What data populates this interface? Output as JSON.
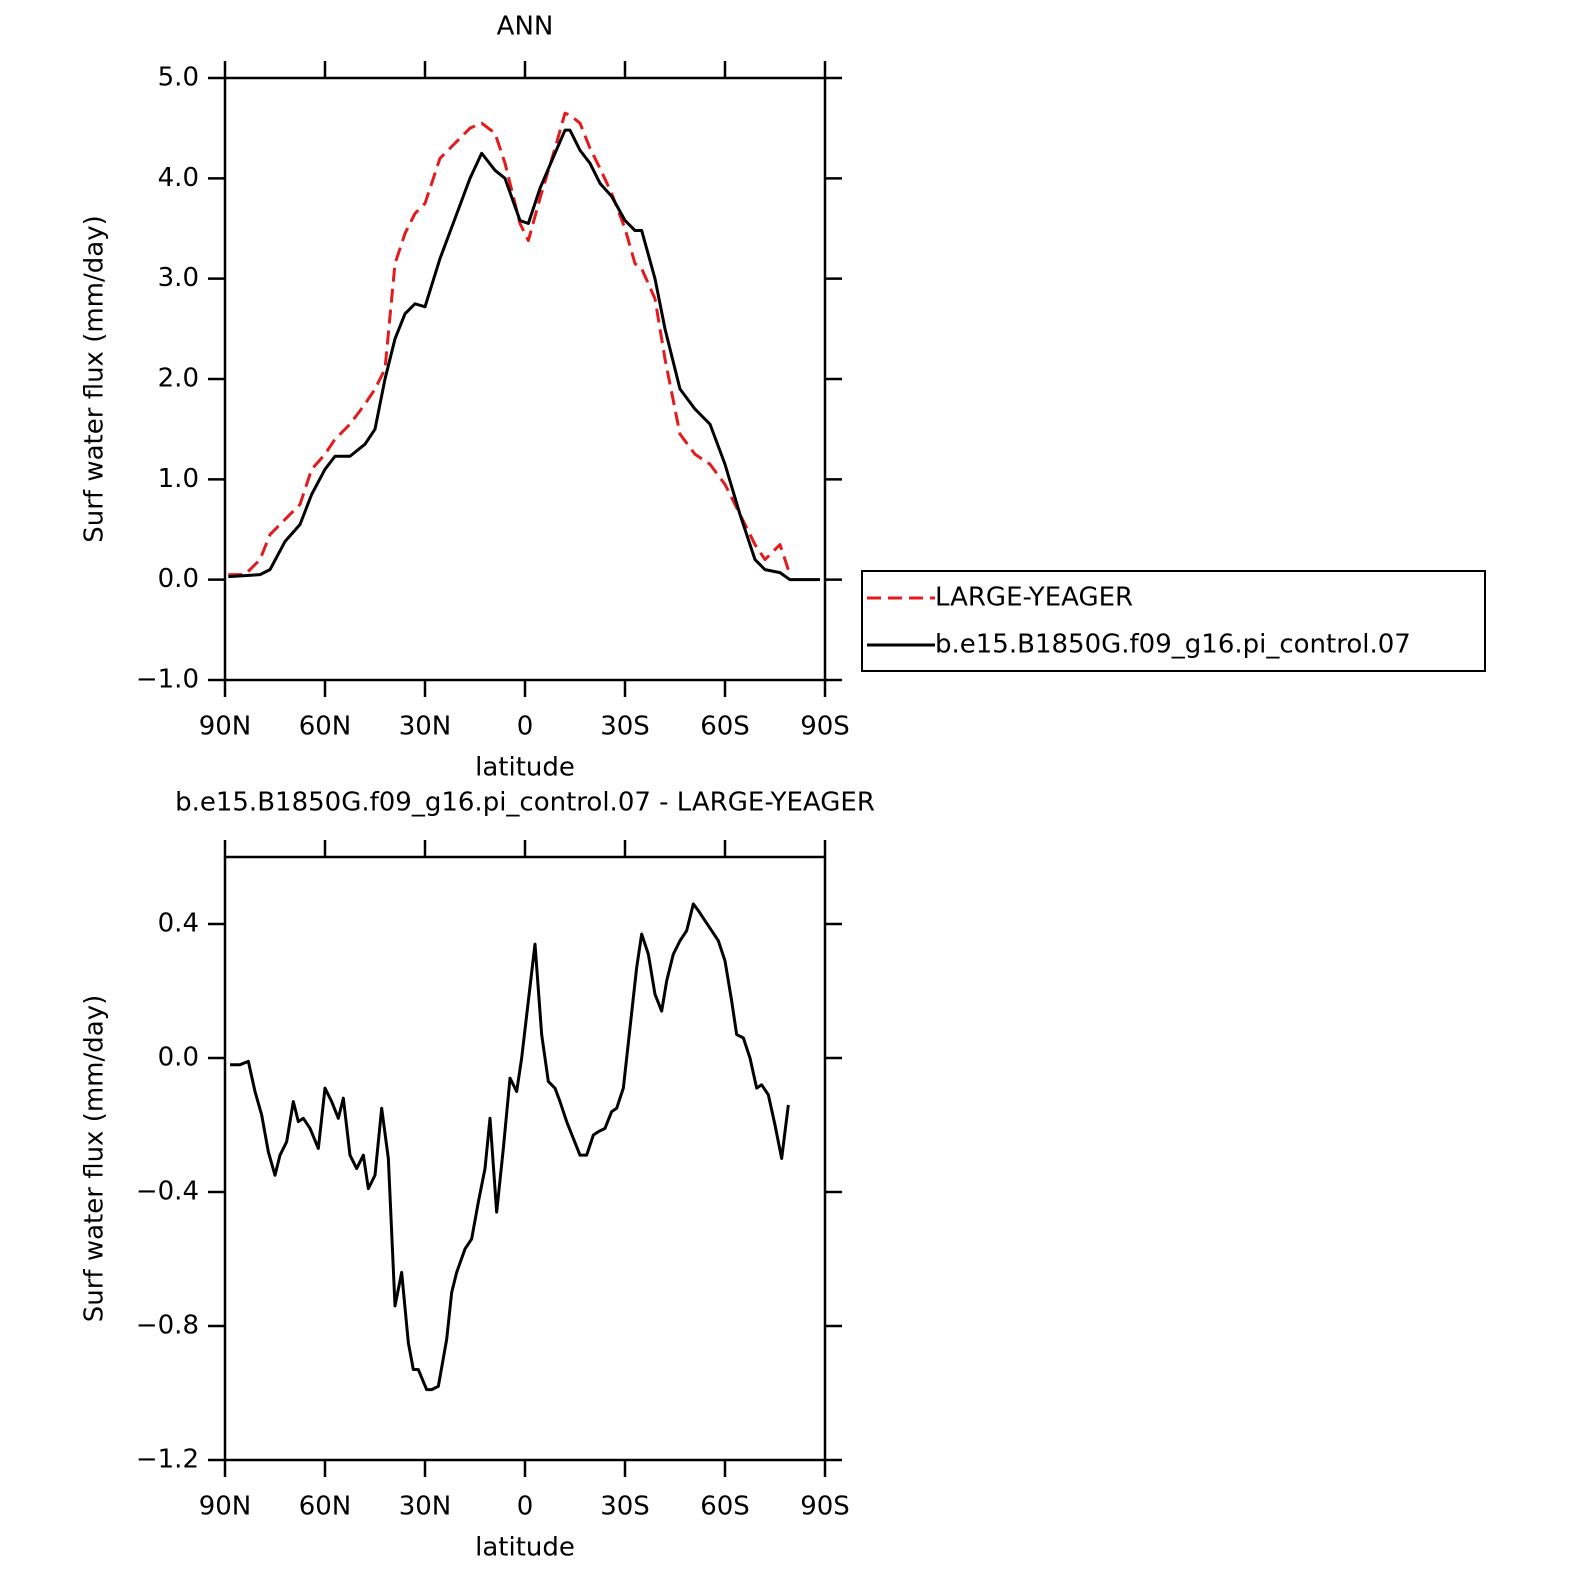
{
  "chart_data": [
    {
      "type": "line",
      "title": "ANN",
      "xlabel": "latitude",
      "ylabel": "Surf water flux (mm/day)",
      "x": [
        89,
        84,
        79.5,
        76.5,
        72,
        67.5,
        64,
        60,
        57,
        52.5,
        48,
        45,
        42,
        39,
        36,
        33,
        30,
        25.5,
        21,
        16.5,
        13,
        9,
        6,
        1.5,
        -1,
        -4.5,
        -9,
        -12,
        -13.5,
        -16.5,
        -19.5,
        -22.5,
        -26,
        -30,
        -33,
        -35,
        -39,
        -42,
        -46.5,
        -51,
        -55.5,
        -60,
        -64.5,
        -69,
        -72,
        -76.5,
        -79.5,
        -88.5
      ],
      "series": [
        {
          "name": "LARGE-YEAGER",
          "color": "#e41a1c",
          "linestyle": "dashed",
          "values": [
            0.05,
            0.05,
            0.2,
            0.45,
            0.6,
            0.75,
            1.1,
            1.25,
            1.4,
            1.55,
            1.75,
            1.9,
            2.1,
            3.15,
            3.45,
            3.65,
            3.75,
            4.2,
            4.35,
            4.5,
            4.55,
            4.45,
            4.15,
            3.55,
            3.38,
            3.8,
            4.3,
            4.65,
            4.63,
            4.55,
            4.3,
            4.1,
            3.85,
            3.5,
            3.15,
            3.1,
            2.8,
            2.2,
            1.45,
            1.25,
            1.15,
            0.95,
            0.65,
            0.35,
            0.2,
            0.35,
            0.05,
            null
          ]
        },
        {
          "name": "b.e15.B1850G.f09_g16.pi_control.07",
          "color": "#000000",
          "linestyle": "solid",
          "values": [
            0.03,
            0.04,
            0.05,
            0.1,
            0.38,
            0.55,
            0.85,
            1.1,
            1.23,
            1.23,
            1.35,
            1.5,
            2.0,
            2.4,
            2.65,
            2.75,
            2.72,
            3.2,
            3.6,
            4.0,
            4.25,
            4.08,
            4.0,
            3.58,
            3.55,
            3.9,
            4.25,
            4.48,
            4.48,
            4.28,
            4.15,
            3.95,
            3.82,
            3.58,
            3.48,
            3.48,
            3.0,
            2.5,
            1.9,
            1.7,
            1.55,
            1.15,
            0.65,
            0.2,
            0.1,
            0.07,
            0.0,
            0.0
          ]
        }
      ],
      "xlim": [
        90,
        -90
      ],
      "xticks": [
        {
          "value": 90,
          "label": "90N"
        },
        {
          "value": 60,
          "label": "60N"
        },
        {
          "value": 30,
          "label": "30N"
        },
        0,
        {
          "value": -30,
          "label": "30S"
        },
        {
          "value": -60,
          "label": "60S"
        },
        {
          "value": -90,
          "label": "90S"
        }
      ],
      "ylim": [
        -1,
        5
      ],
      "yticks": [
        {
          "value": -1,
          "label": "−1.0"
        },
        {
          "value": 0,
          "label": "0.0"
        },
        {
          "value": 1,
          "label": "1.0"
        },
        {
          "value": 2,
          "label": "2.0"
        },
        {
          "value": 3,
          "label": "3.0"
        },
        {
          "value": 4,
          "label": "4.0"
        },
        {
          "value": 5,
          "label": "5.0"
        }
      ],
      "legend": "right"
    },
    {
      "type": "line",
      "title": "b.e15.B1850G.f09_g16.pi_control.07 - LARGE-YEAGER",
      "xlabel": "latitude",
      "ylabel": "Surf water flux (mm/day)",
      "x": [
        88.5,
        85.5,
        83,
        81,
        79,
        77,
        75,
        73.5,
        71.5,
        69.5,
        68,
        66.5,
        64.5,
        62,
        60,
        58,
        56,
        54.5,
        52.5,
        50.5,
        48.5,
        47,
        45,
        43,
        41,
        39,
        37,
        35,
        33.5,
        32,
        29.5,
        28,
        26,
        23.5,
        22,
        20.5,
        18,
        16,
        14,
        12,
        10.5,
        8.5,
        6.5,
        4.5,
        2.5,
        1,
        -1,
        -3,
        -5,
        -7,
        -9,
        -10.5,
        -12.5,
        -14.5,
        -16.5,
        -18.5,
        -20.5,
        -22,
        -24,
        -26,
        -27.5,
        -29.5,
        -31.5,
        -33.5,
        -35,
        -37,
        -39,
        -41,
        -42.5,
        -44.5,
        -46.5,
        -48.5,
        -50.5,
        -52,
        -54,
        -56,
        -58,
        -60,
        -62,
        -63.5,
        -65.5,
        -67.5,
        -69.5,
        -71,
        -73,
        -75,
        -77,
        -79
      ],
      "values": [
        -0.02,
        -0.02,
        -0.01,
        -0.1,
        -0.17,
        -0.28,
        -0.35,
        -0.29,
        -0.25,
        -0.13,
        -0.19,
        -0.18,
        -0.21,
        -0.27,
        -0.09,
        -0.13,
        -0.18,
        -0.12,
        -0.29,
        -0.33,
        -0.29,
        -0.39,
        -0.35,
        -0.15,
        -0.3,
        -0.74,
        -0.64,
        -0.85,
        -0.93,
        -0.93,
        -0.99,
        -0.99,
        -0.98,
        -0.84,
        -0.7,
        -0.64,
        -0.57,
        -0.54,
        -0.43,
        -0.33,
        -0.18,
        -0.46,
        -0.27,
        -0.06,
        -0.1,
        0.0,
        0.17,
        0.34,
        0.07,
        -0.07,
        -0.09,
        -0.13,
        -0.19,
        -0.24,
        -0.29,
        -0.29,
        -0.23,
        -0.22,
        -0.21,
        -0.16,
        -0.15,
        -0.09,
        0.09,
        0.27,
        0.37,
        0.31,
        0.19,
        0.14,
        0.23,
        0.31,
        0.35,
        0.38,
        0.46,
        0.44,
        0.41,
        0.38,
        0.35,
        0.29,
        0.17,
        0.07,
        0.06,
        0.0,
        -0.09,
        -0.08,
        -0.11,
        -0.2,
        -0.3,
        -0.14
      ],
      "color": "#000000",
      "xlim": [
        90,
        -90
      ],
      "xticks": [
        {
          "value": 90,
          "label": "90N"
        },
        {
          "value": 60,
          "label": "60N"
        },
        {
          "value": 30,
          "label": "30N"
        },
        0,
        {
          "value": -30,
          "label": "30S"
        },
        {
          "value": -60,
          "label": "60S"
        },
        {
          "value": -90,
          "label": "90S"
        }
      ],
      "ylim": [
        -1.2,
        0.6
      ],
      "yticks": [
        {
          "value": -1.2,
          "label": "−1.2"
        },
        {
          "value": -0.8,
          "label": "−0.8"
        },
        {
          "value": -0.4,
          "label": "−0.4"
        },
        {
          "value": 0,
          "label": "0.0"
        },
        {
          "value": 0.4,
          "label": "0.4"
        }
      ]
    }
  ]
}
